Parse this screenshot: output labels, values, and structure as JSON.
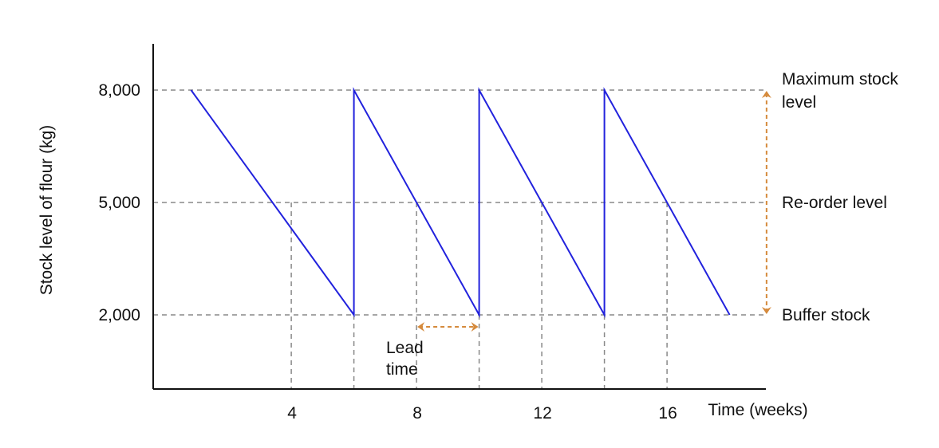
{
  "chart_data": {
    "type": "line",
    "title": "",
    "xlabel": "Time (weeks)",
    "ylabel": "Stock level of flour (kg)",
    "xlim": [
      -2,
      22
    ],
    "ylim": [
      -700,
      9600
    ],
    "x_ticks": [
      4,
      8,
      12,
      16
    ],
    "x_tick_labels": [
      "4",
      "8",
      "12",
      "16"
    ],
    "y_ticks": [
      2000,
      5000,
      8000
    ],
    "y_tick_labels": [
      "2,000",
      "5,000",
      "8,000"
    ],
    "grid": false,
    "series": [
      {
        "color": "#2222dd",
        "x": [
          0.8,
          6,
          6,
          10,
          10,
          14,
          14,
          18
        ],
        "y": [
          8000,
          2000,
          8000,
          2000,
          8000,
          2000,
          8000,
          2000
        ]
      }
    ],
    "reference_lines": [
      {
        "y": 8000,
        "label": [
          "Maximum stock",
          "level"
        ]
      },
      {
        "y": 5000,
        "label": [
          "Re-order level"
        ]
      },
      {
        "y": 2000,
        "label": [
          "Buffer stock"
        ]
      }
    ],
    "reorder_points": [
      4,
      8,
      12,
      16
    ],
    "replenishment_points": [
      6,
      10,
      14
    ],
    "annotations": {
      "lead_time": {
        "from": 8,
        "to": 10,
        "y": 2000,
        "label": [
          "Lead",
          "time"
        ]
      },
      "stock_range_arrow": {
        "x": 19,
        "from": 2000,
        "to": 8000
      }
    },
    "colors": {
      "line": "#2222dd",
      "dashed": "#888888",
      "arrow": "#d58a3c",
      "axis": "#111111"
    }
  }
}
